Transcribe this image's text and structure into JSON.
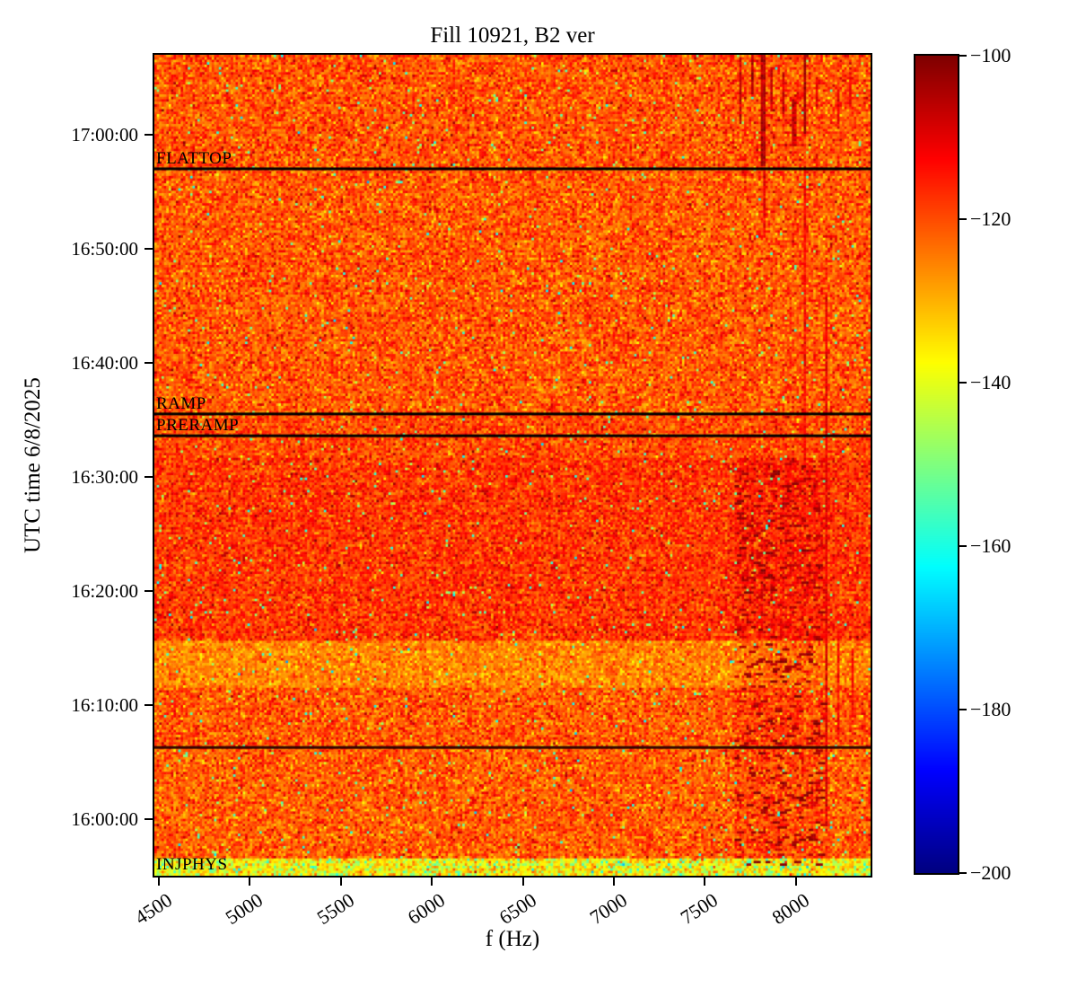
{
  "chart_data": {
    "type": "heatmap",
    "title": "Fill 10921, B2 ver",
    "xlabel": "f (Hz)",
    "ylabel": "UTC time 6/8/2025",
    "xlim": [
      4475,
      8410
    ],
    "x_ticks": [
      4500,
      5000,
      5500,
      6000,
      6500,
      7000,
      7500,
      8000
    ],
    "time_start": "15:55:00",
    "time_end": "17:07:00",
    "y_tick_labels": [
      "17:00:00",
      "16:50:00",
      "16:40:00",
      "16:30:00",
      "16:20:00",
      "16:10:00",
      "16:00:00"
    ],
    "colorbar": {
      "colormap": "jet",
      "vmin": -200,
      "vmax": -100,
      "tick_values": [
        -100,
        -120,
        -140,
        -160,
        -180,
        -200
      ],
      "tick_labels": [
        "−100",
        "−120",
        "−140",
        "−160",
        "−180",
        "−200"
      ]
    },
    "annotations": [
      {
        "label": "FLATTOP",
        "time": "16:57:00",
        "line": true,
        "line_color": "#000000"
      },
      {
        "label": "RAMP",
        "time": "16:35:30",
        "line": true,
        "line_color": "#000000"
      },
      {
        "label": "PRERAMP",
        "time": "16:33:35",
        "line": true,
        "line_color": "#000000"
      },
      {
        "label": "",
        "time": "16:06:15",
        "line": true,
        "line_color": "#320400"
      },
      {
        "label": "INJPHYS",
        "time": "15:55:20",
        "line": false,
        "line_color": "#000000"
      }
    ],
    "time_bands": [
      {
        "t0": 0.0,
        "t1": 1.6,
        "mean": -137.0,
        "std": 7.0,
        "teal": 0.1
      },
      {
        "t0": 1.6,
        "t1": 11.3,
        "mean": -121.5,
        "std": 5.5
      },
      {
        "t0": 11.3,
        "t1": 16.5,
        "mean": -121.0,
        "std": 5.5
      },
      {
        "t0": 16.5,
        "t1": 20.5,
        "mean": -125.5,
        "std": 4.5
      },
      {
        "t0": 20.5,
        "t1": 36.6,
        "mean": -117.5,
        "std": 5.0
      },
      {
        "t0": 36.6,
        "t1": 40.6,
        "mean": -119.5,
        "std": 5.0
      },
      {
        "t0": 40.6,
        "t1": 62.0,
        "mean": -121.0,
        "std": 5.5
      },
      {
        "t0": 62.0,
        "t1": 72.0,
        "mean": -120.5,
        "std": 5.5
      }
    ],
    "outliers": {
      "chance": 0.013,
      "mean": -152,
      "std": 6
    },
    "speckle_column": {
      "f0": 7660,
      "f1": 8150,
      "t0": 0.8,
      "t1": 36.6,
      "chance": 0.055,
      "mean": -104,
      "std": 2.5,
      "bg_shift": 2.5
    },
    "v_streaks": [
      {
        "f": 7700,
        "t0": 66.0,
        "t1": 71.8,
        "p": -107
      },
      {
        "f": 7760,
        "t0": 68.5,
        "t1": 72.0,
        "p": -105
      },
      {
        "f": 7820,
        "t0": 62.2,
        "t1": 72.0,
        "p": -105
      },
      {
        "f": 7825,
        "t0": 56.0,
        "t1": 62.0,
        "p": -111
      },
      {
        "f": 7870,
        "t0": 67.0,
        "t1": 71.0,
        "p": -108
      },
      {
        "f": 7930,
        "t0": 66.5,
        "t1": 70.5,
        "p": -109
      },
      {
        "f": 7990,
        "t0": 64.0,
        "t1": 68.0,
        "p": -108
      },
      {
        "f": 8055,
        "t0": 65.0,
        "t1": 72.0,
        "p": -104
      },
      {
        "f": 8055,
        "t0": 35.0,
        "t1": 62.0,
        "p": -113
      },
      {
        "f": 8110,
        "t0": 67.5,
        "t1": 70.0,
        "p": -110
      },
      {
        "f": 8170,
        "t0": 4.5,
        "t1": 51.0,
        "p": -110
      },
      {
        "f": 8230,
        "t0": 66.0,
        "t1": 69.0,
        "p": -111
      },
      {
        "f": 8235,
        "t0": 12.0,
        "t1": 22.0,
        "p": -113
      },
      {
        "f": 8300,
        "t0": 67.5,
        "t1": 70.5,
        "p": -110
      },
      {
        "f": 8310,
        "t0": 14.0,
        "t1": 20.0,
        "p": -113
      }
    ]
  }
}
